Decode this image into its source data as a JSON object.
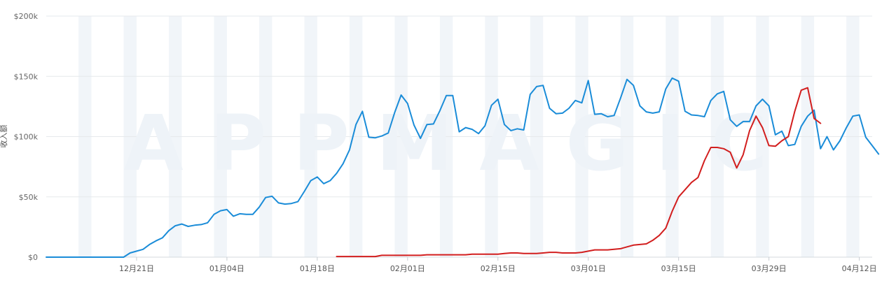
{
  "chart_data": {
    "type": "line",
    "ylabel": "收入额",
    "watermark": "APPMAGIC",
    "ylim": [
      0,
      200000
    ],
    "yticks": [
      {
        "value": 0,
        "label": "$0"
      },
      {
        "value": 50000,
        "label": "$50k"
      },
      {
        "value": 100000,
        "label": "$100k"
      },
      {
        "value": 150000,
        "label": "$150k"
      },
      {
        "value": 200000,
        "label": "$200k"
      }
    ],
    "x_start": "12/07",
    "xticks": [
      {
        "day": 14,
        "label": "12月21日"
      },
      {
        "day": 28,
        "label": "01月04日"
      },
      {
        "day": 42,
        "label": "01月18日"
      },
      {
        "day": 56,
        "label": "02月01日"
      },
      {
        "day": 70,
        "label": "02月15日"
      },
      {
        "day": 84,
        "label": "03月01日"
      },
      {
        "day": 98,
        "label": "03月15日"
      },
      {
        "day": 112,
        "label": "03月29日"
      },
      {
        "day": 126,
        "label": "04月12日"
      }
    ],
    "x_range": [
      0,
      128
    ],
    "weekend_bands": [
      5,
      12,
      19,
      26,
      33,
      40,
      47,
      54,
      61,
      68,
      75,
      82,
      89,
      96,
      103,
      110,
      117,
      124
    ],
    "grid": true,
    "series": [
      {
        "color": "#1a8cd8",
        "start_day": 0,
        "values": [
          0,
          0,
          0,
          0,
          0,
          0,
          0,
          0,
          0,
          0,
          0,
          0,
          0,
          3500,
          5000,
          6500,
          10500,
          13500,
          16000,
          22000,
          26000,
          27500,
          25500,
          26500,
          27000,
          28500,
          35500,
          38500,
          39500,
          34000,
          36000,
          35500,
          35500,
          41500,
          49500,
          50500,
          45000,
          44000,
          44500,
          46000,
          54500,
          63500,
          66500,
          61000,
          63500,
          69500,
          77500,
          89000,
          110000,
          121000,
          99500,
          99000,
          100500,
          103000,
          120000,
          134500,
          127500,
          109500,
          98500,
          110000,
          110500,
          121500,
          134000,
          134000,
          104000,
          107500,
          106000,
          102500,
          109000,
          126000,
          131000,
          110000,
          105000,
          106500,
          105500,
          135000,
          141500,
          142500,
          123500,
          119000,
          119500,
          123500,
          130000,
          128000,
          146500,
          118500,
          119000,
          116500,
          117500,
          132000,
          147500,
          142500,
          125500,
          120500,
          119500,
          120500,
          139500,
          148500,
          146000,
          121000,
          118000,
          117500,
          116500,
          130000,
          135500,
          137500,
          114000,
          108500,
          112500,
          112500,
          125500,
          131000,
          125500,
          101500,
          104500,
          92500,
          93500,
          108500,
          117000,
          122000,
          90000,
          100000,
          89000,
          96500,
          107500,
          117000,
          118000,
          99500,
          92500,
          85500
        ]
      },
      {
        "color": "#d21e1e",
        "start_day": 45,
        "values": [
          500,
          500,
          500,
          500,
          500,
          500,
          500,
          1500,
          1500,
          1500,
          1500,
          1500,
          1500,
          1500,
          2000,
          2000,
          2000,
          2000,
          2000,
          2000,
          2000,
          2500,
          2500,
          2500,
          2500,
          2500,
          3000,
          3500,
          3500,
          3000,
          3000,
          3000,
          3500,
          4000,
          4000,
          3500,
          3500,
          3500,
          4000,
          5000,
          6000,
          6000,
          6000,
          6500,
          7000,
          8500,
          10000,
          10500,
          11000,
          14000,
          18000,
          24000,
          38000,
          50000,
          56000,
          62000,
          66000,
          80000,
          91000,
          91000,
          90000,
          87000,
          74000,
          85000,
          105000,
          117000,
          107500,
          92500,
          92000,
          96500,
          100000,
          121000,
          138500,
          140500,
          115000,
          111000
        ]
      }
    ]
  }
}
